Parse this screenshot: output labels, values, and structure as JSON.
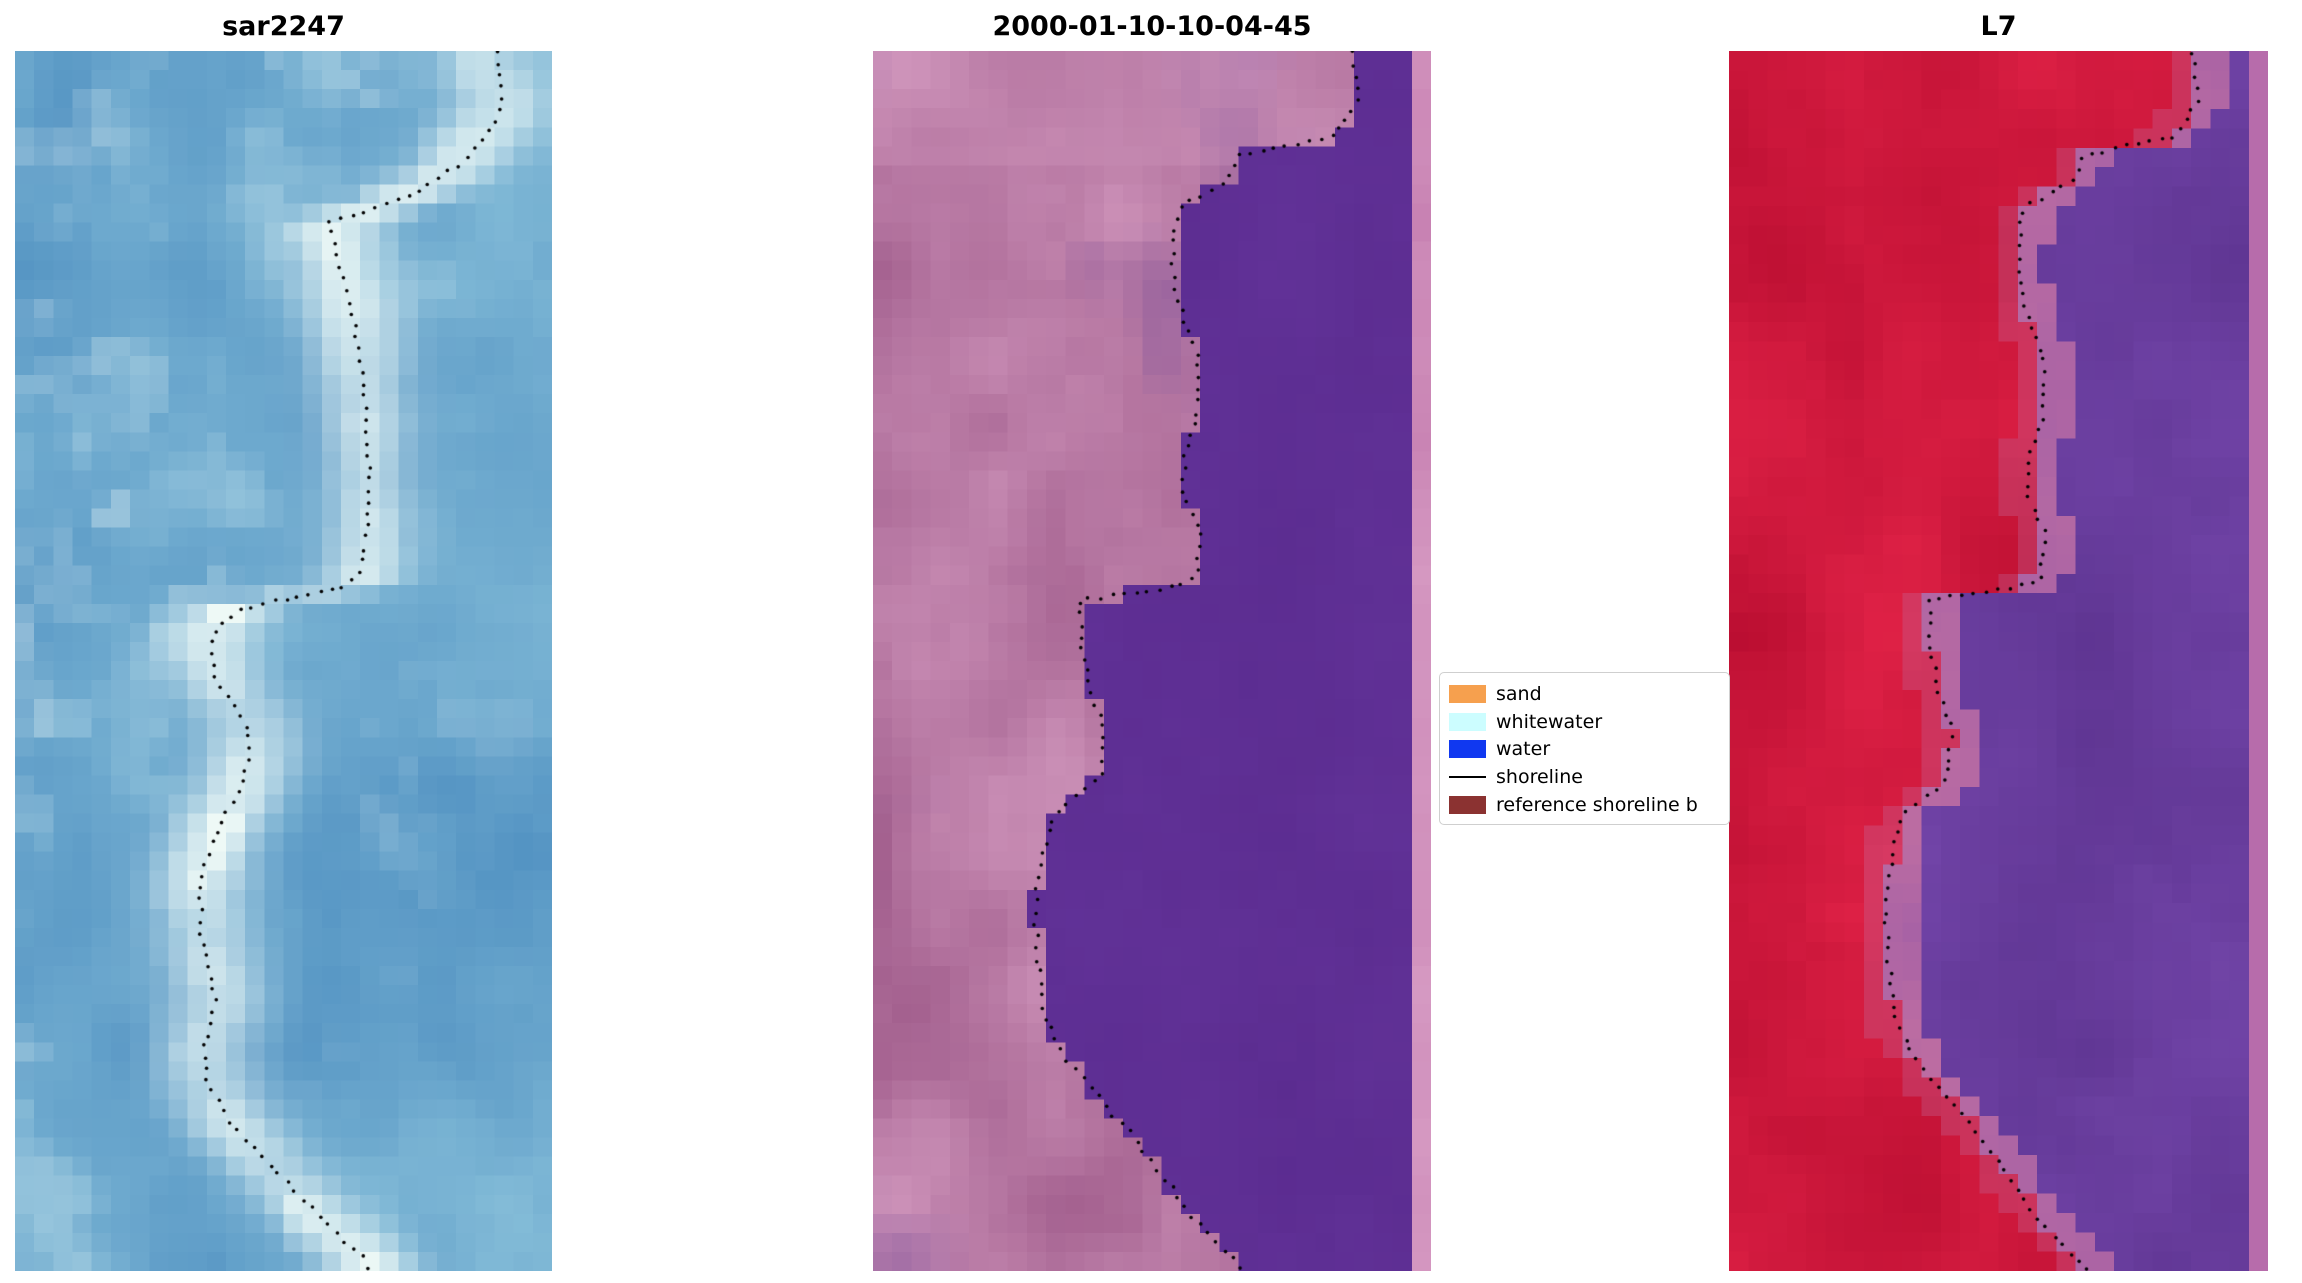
{
  "chart_data": {
    "type": "image",
    "description_visible_panels": 3,
    "panels": [
      {
        "title": "sar2247",
        "type": "sar",
        "colors": {
          "water_dark": "#4688bd",
          "water_light": "#86bed9",
          "bright": "#ffffff",
          "cyan": "#c8ece4"
        },
        "shoreline": [
          [
            0.895,
            0.0
          ],
          [
            0.907,
            0.03
          ],
          [
            0.9,
            0.055
          ],
          [
            0.872,
            0.075
          ],
          [
            0.82,
            0.096
          ],
          [
            0.762,
            0.112
          ],
          [
            0.703,
            0.124
          ],
          [
            0.64,
            0.134
          ],
          [
            0.587,
            0.139
          ],
          [
            0.596,
            0.163
          ],
          [
            0.615,
            0.193
          ],
          [
            0.634,
            0.229
          ],
          [
            0.648,
            0.271
          ],
          [
            0.656,
            0.313
          ],
          [
            0.659,
            0.355
          ],
          [
            0.656,
            0.397
          ],
          [
            0.647,
            0.421
          ],
          [
            0.625,
            0.437
          ],
          [
            0.558,
            0.444
          ],
          [
            0.49,
            0.45
          ],
          [
            0.423,
            0.458
          ],
          [
            0.377,
            0.47
          ],
          [
            0.363,
            0.493
          ],
          [
            0.374,
            0.517
          ],
          [
            0.41,
            0.536
          ],
          [
            0.432,
            0.556
          ],
          [
            0.437,
            0.578
          ],
          [
            0.422,
            0.602
          ],
          [
            0.396,
            0.622
          ],
          [
            0.374,
            0.641
          ],
          [
            0.355,
            0.665
          ],
          [
            0.344,
            0.692
          ],
          [
            0.347,
            0.722
          ],
          [
            0.361,
            0.75
          ],
          [
            0.372,
            0.776
          ],
          [
            0.366,
            0.8
          ],
          [
            0.35,
            0.822
          ],
          [
            0.361,
            0.848
          ],
          [
            0.396,
            0.875
          ],
          [
            0.451,
            0.903
          ],
          [
            0.519,
            0.933
          ],
          [
            0.587,
            0.963
          ],
          [
            0.65,
            0.99
          ],
          [
            0.661,
            1.0
          ]
        ]
      },
      {
        "title": "2000-01-10-10-04-45",
        "type": "classified",
        "colors": {
          "land_light": "#d096bc",
          "land_dark": "#9a5585",
          "blotch": "#7a4f9a",
          "water": "#5b2c90",
          "water_var": "#66369d",
          "stripe": "#c47bae",
          "stripe_light": "#d99fc6"
        },
        "shoreline": [
          [
            0.86,
            0.0
          ],
          [
            0.87,
            0.04
          ],
          [
            0.83,
            0.07
          ],
          [
            0.66,
            0.085
          ],
          [
            0.64,
            0.105
          ],
          [
            0.545,
            0.13
          ],
          [
            0.535,
            0.175
          ],
          [
            0.553,
            0.215
          ],
          [
            0.585,
            0.25
          ],
          [
            0.58,
            0.305
          ],
          [
            0.56,
            0.33
          ],
          [
            0.555,
            0.365
          ],
          [
            0.585,
            0.392
          ],
          [
            0.58,
            0.432
          ],
          [
            0.51,
            0.442
          ],
          [
            0.37,
            0.45
          ],
          [
            0.375,
            0.488
          ],
          [
            0.388,
            0.522
          ],
          [
            0.412,
            0.552
          ],
          [
            0.408,
            0.595
          ],
          [
            0.325,
            0.625
          ],
          [
            0.303,
            0.66
          ],
          [
            0.29,
            0.703
          ],
          [
            0.297,
            0.75
          ],
          [
            0.308,
            0.793
          ],
          [
            0.342,
            0.823
          ],
          [
            0.403,
            0.857
          ],
          [
            0.466,
            0.89
          ],
          [
            0.526,
            0.926
          ],
          [
            0.571,
            0.956
          ],
          [
            0.64,
            0.988
          ],
          [
            0.665,
            1.0
          ]
        ]
      },
      {
        "title": "L7",
        "type": "l7",
        "colors": {
          "land_light": "#e42449",
          "land_dark": "#b80d30",
          "transition": "#c06fa2",
          "water_dark": "#5c338f",
          "water_light": "#7648ad",
          "water_blotch": "#855cbc",
          "stripe": "#b76cab"
        },
        "shoreline": [
          [
            0.86,
            0.0
          ],
          [
            0.87,
            0.04
          ],
          [
            0.83,
            0.07
          ],
          [
            0.66,
            0.085
          ],
          [
            0.64,
            0.105
          ],
          [
            0.545,
            0.13
          ],
          [
            0.535,
            0.175
          ],
          [
            0.553,
            0.215
          ],
          [
            0.585,
            0.25
          ],
          [
            0.58,
            0.305
          ],
          [
            0.56,
            0.33
          ],
          [
            0.555,
            0.365
          ],
          [
            0.585,
            0.392
          ],
          [
            0.58,
            0.432
          ],
          [
            0.51,
            0.442
          ],
          [
            0.37,
            0.45
          ],
          [
            0.375,
            0.488
          ],
          [
            0.388,
            0.522
          ],
          [
            0.412,
            0.552
          ],
          [
            0.408,
            0.595
          ],
          [
            0.325,
            0.625
          ],
          [
            0.303,
            0.66
          ],
          [
            0.29,
            0.703
          ],
          [
            0.297,
            0.75
          ],
          [
            0.308,
            0.793
          ],
          [
            0.342,
            0.823
          ],
          [
            0.403,
            0.857
          ],
          [
            0.466,
            0.89
          ],
          [
            0.526,
            0.926
          ],
          [
            0.571,
            0.956
          ],
          [
            0.64,
            0.988
          ],
          [
            0.665,
            1.0
          ]
        ]
      }
    ],
    "legend": {
      "items": [
        {
          "label": "sand",
          "swatch": "patch",
          "color": "#f6a04e"
        },
        {
          "label": "whitewater",
          "swatch": "patch",
          "color": "#ccfdff"
        },
        {
          "label": "water",
          "swatch": "patch",
          "color": "#1038f0"
        },
        {
          "label": "shoreline",
          "swatch": "line",
          "color": "#000000"
        },
        {
          "label": "reference shoreline b",
          "swatch": "patch",
          "color": "#8b3231"
        }
      ]
    }
  }
}
